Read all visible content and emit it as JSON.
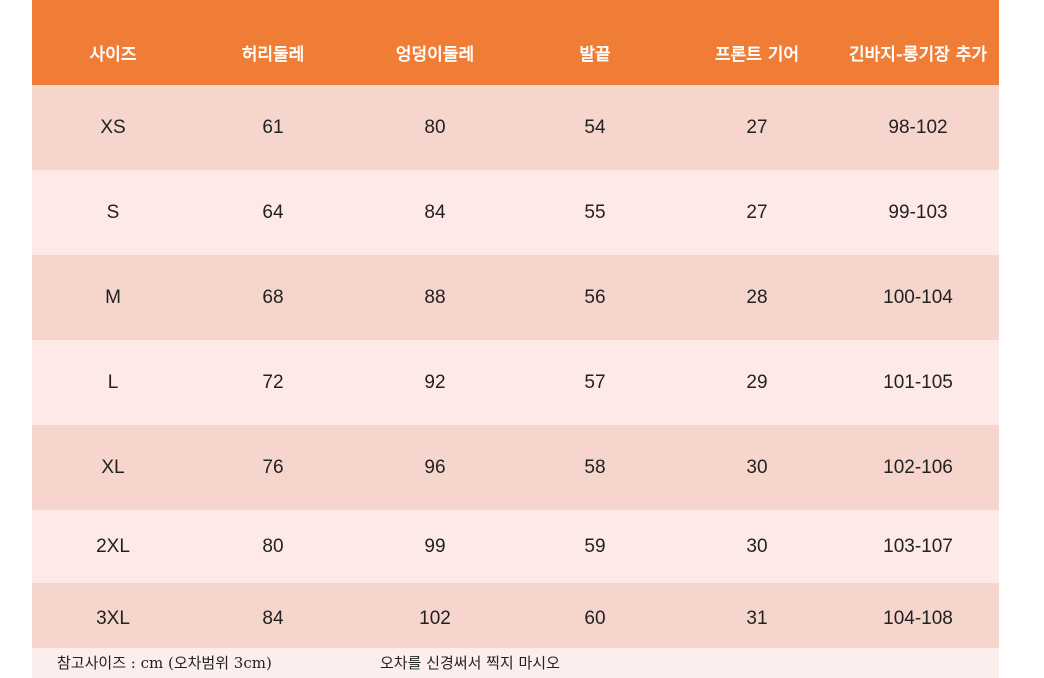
{
  "headers": [
    "사이즈",
    "허리둘레",
    "엉덩이둘레",
    "발끝",
    "프론트 기어",
    "긴바지-롱기장 추가"
  ],
  "rows": [
    [
      "XS",
      "61",
      "80",
      "54",
      "27",
      "98-102"
    ],
    [
      "S",
      "64",
      "84",
      "55",
      "27",
      "99-103"
    ],
    [
      "M",
      "68",
      "88",
      "56",
      "28",
      "100-104"
    ],
    [
      "L",
      "72",
      "92",
      "57",
      "29",
      "101-105"
    ],
    [
      "XL",
      "76",
      "96",
      "58",
      "30",
      "102-106"
    ],
    [
      "2XL",
      "80",
      "99",
      "59",
      "30",
      "103-107"
    ],
    [
      "3XL",
      "84",
      "102",
      "60",
      "31",
      "104-108"
    ]
  ],
  "footer": {
    "note": "참고사이즈 : cm (오차범위 3cm)",
    "warning": "오차를 신경써서 찍지 마시오"
  },
  "colors": {
    "header": "#f07d36",
    "row_a": "#f5d5cc",
    "row_b": "#fdeae8"
  }
}
